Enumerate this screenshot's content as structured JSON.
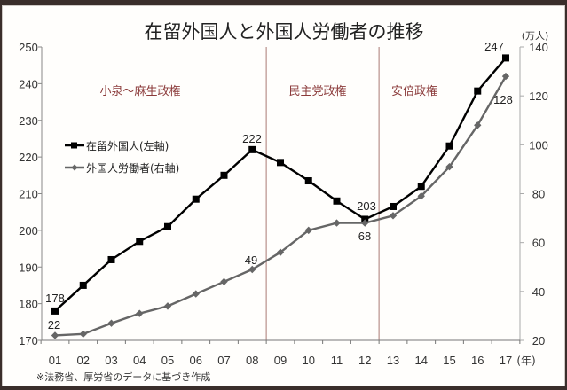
{
  "chart_data": {
    "type": "line",
    "title": "在留外国人と外国人労働者の推移",
    "xlabel": "(年)",
    "ylabel_left": "",
    "ylabel_right": "(万人)",
    "categories": [
      "01",
      "02",
      "03",
      "04",
      "05",
      "06",
      "07",
      "08",
      "09",
      "10",
      "11",
      "12",
      "13",
      "14",
      "15",
      "16",
      "17"
    ],
    "x_unit": "(年)",
    "y_left": {
      "ylim": [
        170,
        250
      ],
      "ticks": [
        170,
        180,
        190,
        200,
        210,
        220,
        230,
        240,
        250
      ]
    },
    "y_right": {
      "ylim": [
        20,
        140
      ],
      "ticks": [
        20,
        40,
        60,
        80,
        100,
        120,
        140
      ],
      "unit": "(万人)"
    },
    "series": [
      {
        "name": "在留外国人(左軸)",
        "axis": "left",
        "color": "#000000",
        "marker": "square",
        "values": [
          178,
          185,
          192,
          197,
          201,
          208.5,
          215,
          222,
          218.5,
          213.5,
          208,
          203,
          206.5,
          212,
          223,
          238,
          247
        ]
      },
      {
        "name": "外国人労働者(右軸)",
        "axis": "right",
        "color": "#666666",
        "marker": "diamond",
        "values": [
          22,
          22.6,
          27,
          31,
          34,
          39,
          44,
          49,
          56,
          65,
          68,
          68,
          71,
          79,
          91,
          108,
          128
        ]
      }
    ],
    "data_labels": [
      {
        "series": 0,
        "index": 0,
        "text": "178"
      },
      {
        "series": 0,
        "index": 7,
        "text": "222"
      },
      {
        "series": 0,
        "index": 11,
        "text": "203"
      },
      {
        "series": 0,
        "index": 16,
        "text": "247"
      },
      {
        "series": 1,
        "index": 0,
        "text": "22"
      },
      {
        "series": 1,
        "index": 7,
        "text": "49"
      },
      {
        "series": 1,
        "index": 11,
        "text": "68"
      },
      {
        "series": 1,
        "index": 16,
        "text": "128"
      }
    ],
    "eras": [
      {
        "label": "小泉～麻生政権",
        "from_index": 0,
        "to_index": 7
      },
      {
        "label": "民主党政権",
        "from_index": 8,
        "to_index": 11
      },
      {
        "label": "安倍政権",
        "from_index": 12,
        "to_index": 16
      }
    ],
    "era_dividers_after_index": [
      7,
      11
    ],
    "era_label_color": "#8b3a3a",
    "divider_color": "#b8908c",
    "legend": [
      {
        "label": "在留外国人(左軸)",
        "marker": "square",
        "color": "#000000"
      },
      {
        "label": "外国人労働者(右軸)",
        "marker": "diamond",
        "color": "#666666"
      }
    ],
    "legend_position": "upper-left inside",
    "grid": false,
    "note": "※法務省、厚労省のデータに基づき作成"
  }
}
